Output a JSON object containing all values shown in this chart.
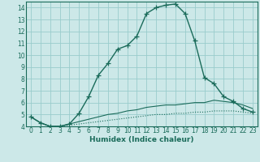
{
  "bg_color": "#cce8e8",
  "grid_color": "#99cccc",
  "line_color": "#1a6b5a",
  "xlabel": "Humidex (Indice chaleur)",
  "xlim": [
    -0.5,
    23.5
  ],
  "ylim": [
    4,
    14.5
  ],
  "xticks": [
    0,
    1,
    2,
    3,
    4,
    5,
    6,
    7,
    8,
    9,
    10,
    11,
    12,
    13,
    14,
    15,
    16,
    17,
    18,
    19,
    20,
    21,
    22,
    23
  ],
  "yticks": [
    4,
    5,
    6,
    7,
    8,
    9,
    10,
    11,
    12,
    13,
    14
  ],
  "curve1_x": [
    0,
    1,
    2,
    3,
    4,
    5,
    6,
    7,
    8,
    9,
    10,
    11,
    12,
    13,
    14,
    15,
    16,
    17,
    18,
    19,
    20,
    21,
    22,
    23
  ],
  "curve1_y": [
    4.8,
    4.3,
    4.0,
    4.0,
    4.2,
    5.1,
    6.5,
    8.3,
    9.3,
    10.5,
    10.8,
    11.6,
    13.5,
    14.0,
    14.2,
    14.3,
    13.5,
    11.2,
    8.1,
    7.6,
    6.5,
    6.1,
    5.5,
    5.2
  ],
  "curve2_x": [
    0,
    1,
    2,
    3,
    4,
    5,
    6,
    7,
    8,
    9,
    10,
    11,
    12,
    13,
    14,
    15,
    16,
    17,
    18,
    19,
    20,
    21,
    22,
    23
  ],
  "curve2_y": [
    4.8,
    4.3,
    4.0,
    4.0,
    4.1,
    4.2,
    4.3,
    4.4,
    4.5,
    4.6,
    4.7,
    4.8,
    4.9,
    5.0,
    5.0,
    5.1,
    5.1,
    5.2,
    5.2,
    5.3,
    5.3,
    5.3,
    5.2,
    5.1
  ],
  "curve3_x": [
    0,
    1,
    2,
    3,
    4,
    5,
    6,
    7,
    8,
    9,
    10,
    11,
    12,
    13,
    14,
    15,
    16,
    17,
    18,
    19,
    20,
    21,
    22,
    23
  ],
  "curve3_y": [
    4.8,
    4.3,
    4.0,
    4.0,
    4.2,
    4.4,
    4.6,
    4.8,
    5.0,
    5.1,
    5.3,
    5.4,
    5.6,
    5.7,
    5.8,
    5.8,
    5.9,
    6.0,
    6.0,
    6.2,
    6.1,
    6.0,
    5.8,
    5.5
  ]
}
